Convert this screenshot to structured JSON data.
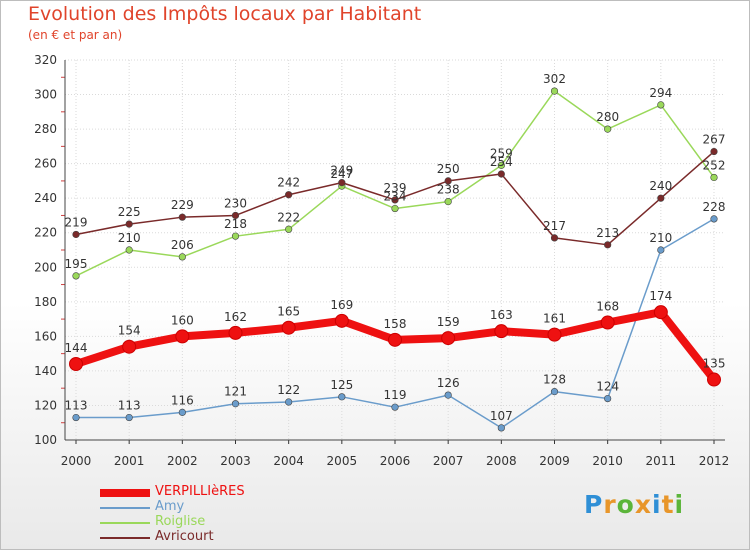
{
  "chart_data": {
    "type": "line",
    "title": "Evolution des Impôts locaux par Habitant",
    "subtitle": "(en € et par an)",
    "x": [
      "2000",
      "2001",
      "2002",
      "2003",
      "2004",
      "2005",
      "2006",
      "2007",
      "2008",
      "2009",
      "2010",
      "2011",
      "2012"
    ],
    "ylim": [
      100,
      320
    ],
    "yticks": [
      100,
      120,
      140,
      160,
      180,
      200,
      220,
      240,
      260,
      280,
      300,
      320
    ],
    "grid": true,
    "legend_position": "bottom-left",
    "series": [
      {
        "name": "VERPILLIèRES",
        "color": "#ee1111",
        "values": [
          144,
          154,
          160,
          162,
          165,
          169,
          158,
          159,
          163,
          161,
          168,
          174,
          135
        ]
      },
      {
        "name": "Amy",
        "color": "#6a9ccb",
        "values": [
          113,
          113,
          116,
          121,
          122,
          125,
          119,
          126,
          107,
          128,
          124,
          210,
          228
        ]
      },
      {
        "name": "Roiglise",
        "color": "#9ad85a",
        "values": [
          195,
          210,
          206,
          218,
          222,
          247,
          234,
          238,
          259,
          302,
          280,
          294,
          252
        ]
      },
      {
        "name": "Avricourt",
        "color": "#7a2a2a",
        "values": [
          219,
          225,
          229,
          230,
          242,
          249,
          239,
          250,
          254,
          217,
          213,
          240,
          267
        ]
      }
    ]
  },
  "logo": {
    "text": "Proxiti"
  }
}
